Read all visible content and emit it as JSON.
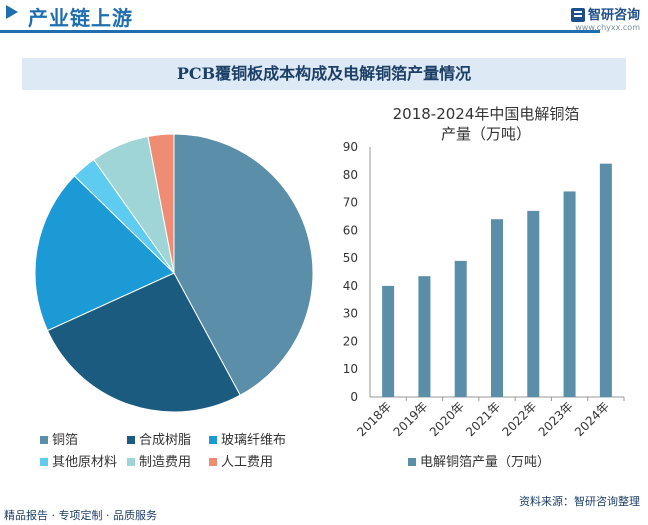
{
  "header": {
    "title": "产业链上游"
  },
  "logo": {
    "name": "智研咨询",
    "url": "www.chyxx.com"
  },
  "chart_title": "PCB覆铜板成本构成及电解铜箔产量情况",
  "footer": {
    "left": "精品报告 · 专项定制 · 品质服务",
    "source": "资料来源：智研咨询整理"
  },
  "colors": {
    "brand": "#1f6fb0"
  },
  "chart_data": [
    {
      "type": "pie",
      "title": "",
      "slices": [
        {
          "name": "铜箔",
          "value": 42.1,
          "color": "#5b8ea8"
        },
        {
          "name": "合成树脂",
          "value": 26.1,
          "color": "#1b5b80"
        },
        {
          "name": "玻璃纤维布",
          "value": 19.1,
          "color": "#1c9ad6"
        },
        {
          "name": "其他原材料",
          "value": 2.9,
          "color": "#5dccf0"
        },
        {
          "name": "制造费用",
          "value": 6.8,
          "color": "#9fd5d6"
        },
        {
          "name": "人工费用",
          "value": 3.0,
          "color": "#f08c74"
        }
      ],
      "legend_position": "bottom"
    },
    {
      "type": "bar",
      "title": "2018-2024年中国电解铜箔产量（万吨）",
      "categories": [
        "2018年",
        "2019年",
        "2020年",
        "2021年",
        "2022年",
        "2023年",
        "2024年"
      ],
      "series": [
        {
          "name": "电解铜箔产量（万吨）",
          "values": [
            40,
            43.5,
            49,
            64,
            67,
            74,
            84
          ],
          "color": "#5b8ea8"
        }
      ],
      "yticks": [
        "0",
        "10",
        "20",
        "30",
        "40",
        "50",
        "60",
        "70",
        "80",
        "90"
      ],
      "ylim": [
        0,
        90
      ],
      "legend_position": "bottom"
    }
  ]
}
